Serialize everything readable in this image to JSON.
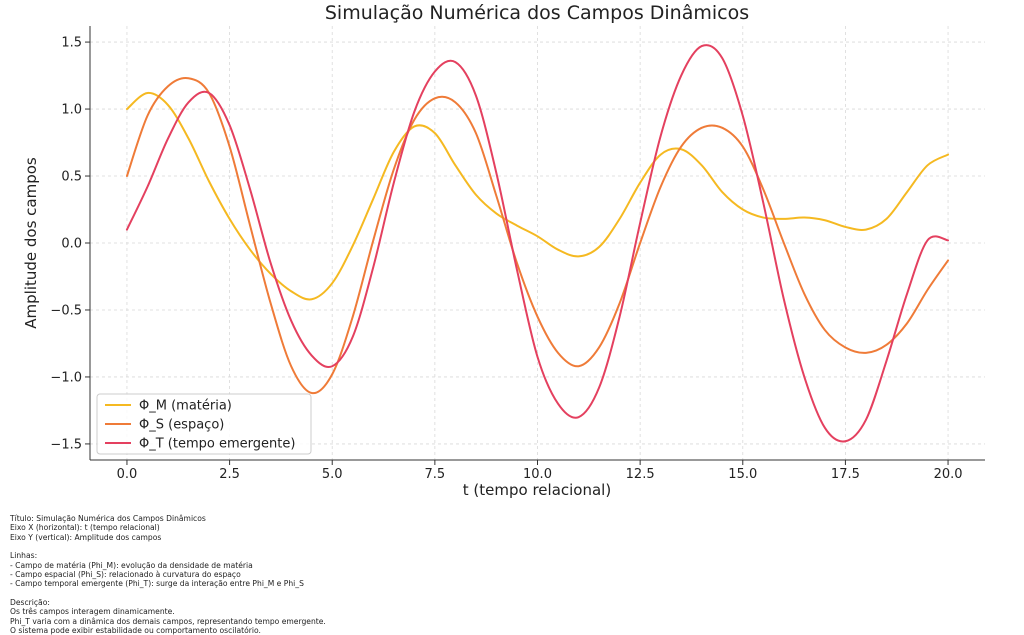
{
  "chart_data": {
    "type": "line",
    "title": "Simulação Numérica dos Campos Dinâmicos",
    "xlabel": "t (tempo relacional)",
    "ylabel": "Amplitude dos campos",
    "xlim": [
      -0.9,
      20.9
    ],
    "ylim": [
      -1.62,
      1.62
    ],
    "xticks": [
      0.0,
      2.5,
      5.0,
      7.5,
      10.0,
      12.5,
      15.0,
      17.5,
      20.0
    ],
    "xtick_labels": [
      "0.0",
      "2.5",
      "5.0",
      "7.5",
      "10.0",
      "12.5",
      "15.0",
      "17.5",
      "20.0"
    ],
    "yticks": [
      -1.5,
      -1.0,
      -0.5,
      0.0,
      0.5,
      1.0,
      1.5
    ],
    "ytick_labels": [
      "−1.5",
      "−1.0",
      "−0.5",
      "0.0",
      "0.5",
      "1.0",
      "1.5"
    ],
    "grid": true,
    "legend_position": "lower-left",
    "series": [
      {
        "name": "Φ_M (matéria)",
        "color": "#f5b921",
        "x": [
          0,
          0.5,
          1,
          1.5,
          2,
          2.5,
          3,
          3.5,
          4,
          4.5,
          5,
          5.5,
          6,
          6.5,
          7,
          7.5,
          8,
          8.5,
          9,
          9.5,
          10,
          10.5,
          11,
          11.5,
          12,
          12.5,
          13,
          13.5,
          14,
          14.5,
          15,
          15.5,
          16,
          16.5,
          17,
          17.5,
          18,
          18.5,
          19,
          19.5,
          20
        ],
        "y": [
          1.0,
          1.12,
          1.03,
          0.78,
          0.46,
          0.18,
          -0.05,
          -0.23,
          -0.36,
          -0.42,
          -0.3,
          -0.02,
          0.33,
          0.68,
          0.87,
          0.82,
          0.58,
          0.36,
          0.22,
          0.13,
          0.05,
          -0.05,
          -0.1,
          -0.03,
          0.18,
          0.45,
          0.66,
          0.7,
          0.58,
          0.38,
          0.25,
          0.19,
          0.18,
          0.19,
          0.17,
          0.12,
          0.1,
          0.18,
          0.38,
          0.58,
          0.66
        ]
      },
      {
        "name": "Φ_S (espaço)",
        "color": "#ef7b38",
        "x": [
          0,
          0.5,
          1,
          1.5,
          2,
          2.5,
          3,
          3.5,
          4,
          4.5,
          5,
          5.5,
          6,
          6.5,
          7,
          7.5,
          8,
          8.5,
          9,
          9.5,
          10,
          10.5,
          11,
          11.5,
          12,
          12.5,
          13,
          13.5,
          14,
          14.5,
          15,
          15.5,
          16,
          16.5,
          17,
          17.5,
          18,
          18.5,
          19,
          19.5,
          20
        ],
        "y": [
          0.5,
          0.95,
          1.17,
          1.23,
          1.12,
          0.72,
          0.13,
          -0.45,
          -0.92,
          -1.12,
          -0.98,
          -0.55,
          0.02,
          0.55,
          0.92,
          1.08,
          1.05,
          0.82,
          0.35,
          -0.15,
          -0.55,
          -0.82,
          -0.92,
          -0.78,
          -0.45,
          0.0,
          0.42,
          0.72,
          0.86,
          0.86,
          0.72,
          0.4,
          0.0,
          -0.38,
          -0.65,
          -0.78,
          -0.82,
          -0.76,
          -0.6,
          -0.35,
          -0.13
        ]
      },
      {
        "name": "Φ_T (tempo emergente)",
        "color": "#e4405f",
        "x": [
          0,
          0.5,
          1,
          1.5,
          2,
          2.5,
          3,
          3.5,
          4,
          4.5,
          5,
          5.5,
          6,
          6.5,
          7,
          7.5,
          8,
          8.5,
          9,
          9.5,
          10,
          10.5,
          11,
          11.5,
          12,
          12.5,
          13,
          13.5,
          14,
          14.5,
          15,
          15.5,
          16,
          16.5,
          17,
          17.5,
          18,
          18.5,
          19,
          19.5,
          20
        ],
        "y": [
          0.1,
          0.42,
          0.78,
          1.05,
          1.12,
          0.88,
          0.4,
          -0.15,
          -0.58,
          -0.84,
          -0.92,
          -0.7,
          -0.18,
          0.45,
          0.98,
          1.28,
          1.35,
          1.1,
          0.52,
          -0.2,
          -0.85,
          -1.2,
          -1.3,
          -1.08,
          -0.55,
          0.15,
          0.8,
          1.25,
          1.47,
          1.38,
          0.95,
          0.3,
          -0.42,
          -1.0,
          -1.38,
          -1.48,
          -1.32,
          -0.88,
          -0.38,
          0.02,
          0.02
        ]
      }
    ]
  },
  "notes": {
    "title_line": "Título: Simulação Numérica dos Campos Dinâmicos",
    "x_line": "Eixo X (horizontal): t (tempo relacional)",
    "y_line": "Eixo Y (vertical): Amplitude dos campos",
    "lines_header": "Linhas:",
    "line_m": "- Campo de matéria (Phi_M): evolução da densidade de matéria",
    "line_s": "- Campo espacial (Phi_S): relacionado à curvatura do espaço",
    "line_t": "- Campo temporal emergente (Phi_T): surge da interação entre Phi_M e Phi_S",
    "desc_header": "Descrição:",
    "desc_1": "Os três campos interagem dinamicamente.",
    "desc_2": "Phi_T varia com a dinâmica dos demais campos, representando tempo emergente.",
    "desc_3": "O sistema pode exibir estabilidade ou comportamento oscilatório."
  }
}
